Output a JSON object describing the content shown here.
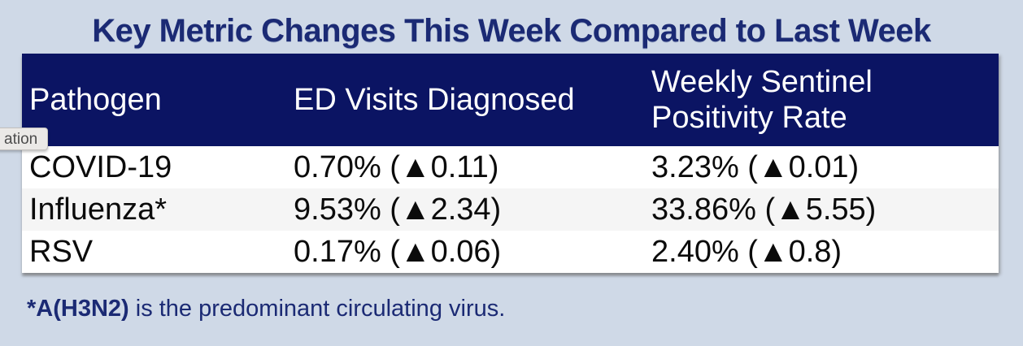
{
  "title": "Key Metric Changes This Week Compared to Last Week",
  "table": {
    "columns": [
      "Pathogen",
      "ED Visits Diagnosed",
      "Weekly Sentinel Positivity Rate"
    ],
    "rows": [
      {
        "pathogen": "COVID-19",
        "ed_visits": "0.70% (▲0.11)",
        "positivity": "3.23% (▲0.01)"
      },
      {
        "pathogen": "Influenza*",
        "ed_visits": "9.53% (▲2.34)",
        "positivity": "33.86% (▲5.55)"
      },
      {
        "pathogen": "RSV",
        "ed_visits": "0.17% (▲0.06)",
        "positivity": "2.40% (▲0.8)"
      }
    ],
    "delta_icon": "▲"
  },
  "footnote": {
    "bold": "*A(H3N2)",
    "rest": " is the predominant circulating virus."
  },
  "tooltip": {
    "text": "ation"
  },
  "colors": {
    "page_background": "#cfd9e7",
    "header_background": "#0b1463",
    "header_text": "#ffffff",
    "title_text": "#1b2a74",
    "row_alt_background": "#f5f5f5",
    "data_text": "#0b0b0b",
    "tooltip_background": "#ebe9e7",
    "tooltip_text": "#4c4c4c"
  }
}
